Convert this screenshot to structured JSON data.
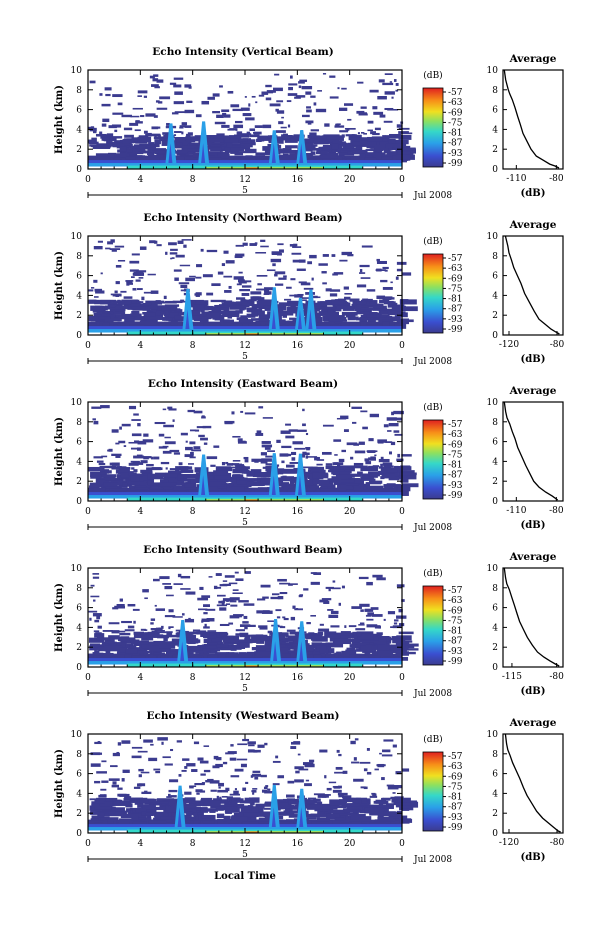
{
  "figure": {
    "xlabel": "Local Time",
    "date_label": "Jul 2008",
    "day_marker": "5"
  },
  "chart_data": [
    {
      "type": "heatmap",
      "title": "Echo Intensity (Vertical Beam)",
      "ylabel": "Height (km)",
      "xlim": [
        0,
        24
      ],
      "ylim": [
        0,
        10
      ],
      "x_ticks": [
        "0",
        "4",
        "8",
        "12",
        "16",
        "20",
        "0"
      ],
      "y_ticks": [
        "0",
        "2",
        "4",
        "6",
        "8",
        "10"
      ],
      "colorbar": {
        "label": "(dB)",
        "ticks": [
          "-57",
          "-63",
          "-69",
          "-75",
          "-81",
          "-87",
          "-93",
          "-99"
        ]
      },
      "spikes_hours": [
        6.3,
        8.8,
        14.2,
        16.3
      ],
      "average_profile": {
        "title": "Average",
        "xlabel": "(dB)",
        "x_ticks": [
          "-110",
          "-80"
        ],
        "xlim": [
          -120,
          -75
        ],
        "points": [
          [
            -119,
            10
          ],
          [
            -118,
            9
          ],
          [
            -117,
            8.5
          ],
          [
            -116,
            8
          ],
          [
            -115,
            7.6
          ],
          [
            -113,
            7
          ],
          [
            -111,
            6.2
          ],
          [
            -109,
            5.3
          ],
          [
            -107,
            4.5
          ],
          [
            -105,
            3.6
          ],
          [
            -102,
            2.8
          ],
          [
            -99,
            2
          ],
          [
            -95,
            1.3
          ],
          [
            -90,
            0.9
          ],
          [
            -85,
            0.5
          ],
          [
            -81,
            0.3
          ],
          [
            -78,
            0.1
          ]
        ]
      }
    },
    {
      "type": "heatmap",
      "title": "Echo Intensity (Northward Beam)",
      "ylabel": "Height (km)",
      "xlim": [
        0,
        24
      ],
      "ylim": [
        0,
        10
      ],
      "x_ticks": [
        "0",
        "4",
        "8",
        "12",
        "16",
        "20",
        "0"
      ],
      "y_ticks": [
        "0",
        "2",
        "4",
        "6",
        "8",
        "10"
      ],
      "colorbar": {
        "label": "(dB)",
        "ticks": [
          "-57",
          "-63",
          "-69",
          "-75",
          "-81",
          "-87",
          "-93",
          "-99"
        ]
      },
      "spikes_hours": [
        7.6,
        14.2,
        16.2,
        17.0
      ],
      "average_profile": {
        "title": "Average",
        "xlabel": "(dB)",
        "x_ticks": [
          "-120",
          "-80"
        ],
        "xlim": [
          -125,
          -75
        ],
        "points": [
          [
            -123,
            10
          ],
          [
            -121,
            9
          ],
          [
            -120,
            8.3
          ],
          [
            -118,
            7.6
          ],
          [
            -116,
            6.8
          ],
          [
            -113,
            6
          ],
          [
            -110,
            5.2
          ],
          [
            -107,
            4.2
          ],
          [
            -103,
            3.3
          ],
          [
            -99,
            2.4
          ],
          [
            -95,
            1.6
          ],
          [
            -90,
            1.1
          ],
          [
            -85,
            0.6
          ],
          [
            -81,
            0.3
          ],
          [
            -78,
            0.1
          ]
        ]
      }
    },
    {
      "type": "heatmap",
      "title": "Echo Intensity (Eastward Beam)",
      "ylabel": "Height (km)",
      "xlim": [
        0,
        24
      ],
      "ylim": [
        0,
        10
      ],
      "x_ticks": [
        "0",
        "4",
        "8",
        "12",
        "16",
        "20",
        "0"
      ],
      "y_ticks": [
        "0",
        "2",
        "4",
        "6",
        "8",
        "10"
      ],
      "colorbar": {
        "label": "(dB)",
        "ticks": [
          "-57",
          "-63",
          "-69",
          "-75",
          "-81",
          "-87",
          "-93",
          "-99"
        ]
      },
      "spikes_hours": [
        8.8,
        14.2,
        16.2
      ],
      "average_profile": {
        "title": "Average",
        "xlabel": "(dB)",
        "x_ticks": [
          "-110",
          "-80"
        ],
        "xlim": [
          -120,
          -75
        ],
        "points": [
          [
            -119,
            10
          ],
          [
            -118,
            9
          ],
          [
            -117,
            8.4
          ],
          [
            -115,
            7.8
          ],
          [
            -113,
            7
          ],
          [
            -111,
            6.3
          ],
          [
            -109,
            5.4
          ],
          [
            -106,
            4.5
          ],
          [
            -103,
            3.6
          ],
          [
            -100,
            2.8
          ],
          [
            -97,
            2
          ],
          [
            -93,
            1.4
          ],
          [
            -88,
            0.9
          ],
          [
            -83,
            0.5
          ],
          [
            -79,
            0.1
          ]
        ]
      }
    },
    {
      "type": "heatmap",
      "title": "Echo Intensity (Southward Beam)",
      "ylabel": "Height (km)",
      "xlim": [
        0,
        24
      ],
      "ylim": [
        0,
        10
      ],
      "x_ticks": [
        "0",
        "4",
        "8",
        "12",
        "16",
        "20",
        "0"
      ],
      "y_ticks": [
        "0",
        "2",
        "4",
        "6",
        "8",
        "10"
      ],
      "colorbar": {
        "label": "(dB)",
        "ticks": [
          "-57",
          "-63",
          "-69",
          "-75",
          "-81",
          "-87",
          "-93",
          "-99"
        ]
      },
      "spikes_hours": [
        7.2,
        14.3,
        16.3
      ],
      "average_profile": {
        "title": "Average",
        "xlabel": "(dB)",
        "x_ticks": [
          "-115",
          "-80"
        ],
        "xlim": [
          -122,
          -75
        ],
        "points": [
          [
            -121,
            10
          ],
          [
            -120,
            9
          ],
          [
            -119,
            8.4
          ],
          [
            -117,
            7.8
          ],
          [
            -115,
            7
          ],
          [
            -113,
            6.2
          ],
          [
            -111,
            5.4
          ],
          [
            -109,
            4.6
          ],
          [
            -106,
            3.8
          ],
          [
            -103,
            3
          ],
          [
            -99,
            2.2
          ],
          [
            -95,
            1.5
          ],
          [
            -90,
            1
          ],
          [
            -85,
            0.6
          ],
          [
            -81,
            0.3
          ],
          [
            -78,
            0.1
          ]
        ]
      }
    },
    {
      "type": "heatmap",
      "title": "Echo Intensity (Westward Beam)",
      "ylabel": "Height (km)",
      "xlim": [
        0,
        24
      ],
      "ylim": [
        0,
        10
      ],
      "x_ticks": [
        "0",
        "4",
        "8",
        "12",
        "16",
        "20",
        "0"
      ],
      "y_ticks": [
        "0",
        "2",
        "4",
        "6",
        "8",
        "10"
      ],
      "colorbar": {
        "label": "(dB)",
        "ticks": [
          "-57",
          "-63",
          "-69",
          "-75",
          "-81",
          "-87",
          "-93",
          "-99"
        ]
      },
      "spikes_hours": [
        7.0,
        14.2,
        16.3
      ],
      "average_profile": {
        "title": "Average",
        "xlabel": "(dB)",
        "x_ticks": [
          "-120",
          "-80"
        ],
        "xlim": [
          -125,
          -75
        ],
        "points": [
          [
            -123,
            10
          ],
          [
            -122,
            9
          ],
          [
            -121,
            8.4
          ],
          [
            -119,
            7.8
          ],
          [
            -117,
            7.1
          ],
          [
            -114,
            6.3
          ],
          [
            -111,
            5.5
          ],
          [
            -108,
            4.6
          ],
          [
            -105,
            3.8
          ],
          [
            -101,
            3
          ],
          [
            -97,
            2.2
          ],
          [
            -92,
            1.5
          ],
          [
            -87,
            1
          ],
          [
            -83,
            0.6
          ],
          [
            -79,
            0.2
          ],
          [
            -77,
            0.1
          ]
        ]
      }
    }
  ]
}
